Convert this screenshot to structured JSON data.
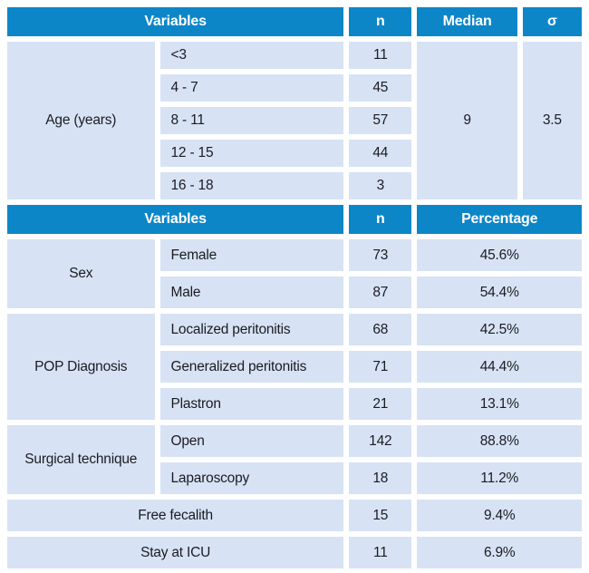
{
  "table": {
    "title_semantic": "Patient characteristics table",
    "colors": {
      "header_bg": "#0d86c8",
      "header_text": "#ffffff",
      "cell_bg": "#d7e3f4",
      "body_text": "#1b1b22",
      "gutter": "#ffffff"
    },
    "header1": {
      "variables": "Variables",
      "n": "n",
      "median": "Median",
      "sigma": "σ"
    },
    "header2": {
      "variables": "Variables",
      "n": "n",
      "percentage": "Percentage"
    },
    "age": {
      "label": "Age (years)",
      "rows": [
        {
          "range": "<3",
          "n": "11"
        },
        {
          "range": "4 - 7",
          "n": "45"
        },
        {
          "range": "8 - 11",
          "n": "57"
        },
        {
          "range": "12 - 15",
          "n": "44"
        },
        {
          "range": "16 - 18",
          "n": "3"
        }
      ],
      "median": "9",
      "sigma": "3.5"
    },
    "groups": [
      {
        "label": "Sex",
        "rows": [
          {
            "category": "Female",
            "n": "73",
            "percentage": "45.6%"
          },
          {
            "category": "Male",
            "n": "87",
            "percentage": "54.4%"
          }
        ]
      },
      {
        "label": "POP Diagnosis",
        "rows": [
          {
            "category": "Localized peritonitis",
            "n": "68",
            "percentage": "42.5%"
          },
          {
            "category": "Generalized peritonitis",
            "n": "71",
            "percentage": "44.4%"
          },
          {
            "category": "Plastron",
            "n": "21",
            "percentage": "13.1%"
          }
        ]
      },
      {
        "label": "Surgical technique",
        "rows": [
          {
            "category": "Open",
            "n": "142",
            "percentage": "88.8%"
          },
          {
            "category": "Laparoscopy",
            "n": "18",
            "percentage": "11.2%"
          }
        ]
      }
    ],
    "single_rows": [
      {
        "label": "Free fecalith",
        "n": "15",
        "percentage": "9.4%"
      },
      {
        "label": "Stay at ICU",
        "n": "11",
        "percentage": "6.9%"
      }
    ]
  }
}
